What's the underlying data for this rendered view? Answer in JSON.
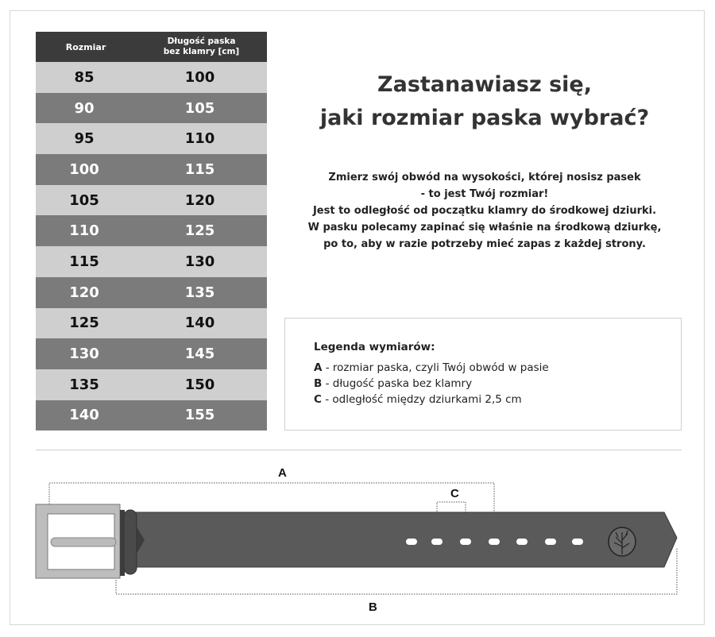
{
  "table": {
    "headers": {
      "size": "Rozmiar",
      "length_line1": "Długość paska",
      "length_line2": "bez klamry [cm]"
    },
    "rows": [
      {
        "size": "85",
        "length": "100"
      },
      {
        "size": "90",
        "length": "105"
      },
      {
        "size": "95",
        "length": "110"
      },
      {
        "size": "100",
        "length": "115"
      },
      {
        "size": "105",
        "length": "120"
      },
      {
        "size": "110",
        "length": "125"
      },
      {
        "size": "115",
        "length": "130"
      },
      {
        "size": "120",
        "length": "135"
      },
      {
        "size": "125",
        "length": "140"
      },
      {
        "size": "130",
        "length": "145"
      },
      {
        "size": "135",
        "length": "150"
      },
      {
        "size": "140",
        "length": "155"
      }
    ]
  },
  "title": {
    "line1": "Zastanawiasz się,",
    "line2": "jaki rozmiar paska wybrać?"
  },
  "description": [
    "Zmierz swój obwód na wysokości, której nosisz pasek",
    "- to jest Twój rozmiar!",
    "Jest to odległość od początku klamry do środkowej dziurki.",
    "W pasku polecamy zapinać się właśnie na środkową dziurkę,",
    "po to, aby w razie potrzeby mieć zapas z każdej strony."
  ],
  "legend": {
    "title": "Legenda wymiarów:",
    "items": [
      {
        "key": "A",
        "text": " - rozmiar paska, czyli Twój obwód w pasie"
      },
      {
        "key": "B",
        "text": " - długość paska bez klamry"
      },
      {
        "key": "C",
        "text": " - odległość między dziurkami 2,5 cm"
      }
    ]
  },
  "diagram": {
    "label_a": "A",
    "label_b": "B",
    "label_c": "C",
    "belt_color": "#5a5a5a",
    "buckle_color": "#bdbdbd"
  }
}
